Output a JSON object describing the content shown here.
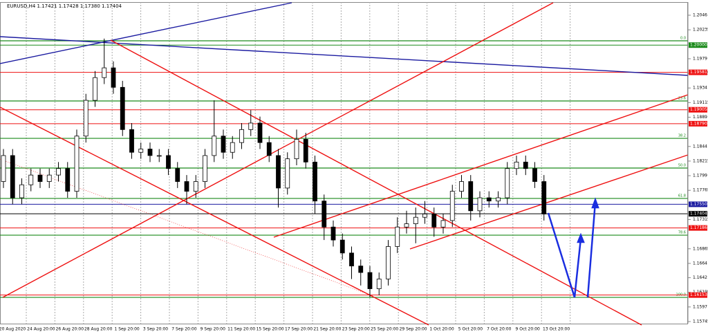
{
  "chart_data": {
    "type": "candlestick",
    "title": "EURUSD,H4  1.17421 1.17428 1.17380 1.17404",
    "ylim": [
      1.15745,
      1.2046
    ],
    "yticks": [
      1.2046,
      1.20235,
      1.1979,
      1.19565,
      1.1934,
      1.19115,
      1.1889,
      1.1844,
      1.18215,
      1.1799,
      1.17765,
      1.17315,
      1.16865,
      1.1664,
      1.1642,
      1.16195,
      1.1597,
      1.15745
    ],
    "xlabels": [
      "20 Aug 2020",
      "24 Aug 20:00",
      "26 Aug 20:00",
      "28 Aug 20:00",
      "1 Sep 20:00",
      "3 Sep 20:00",
      "7 Sep 20:00",
      "9 Sep 20:00",
      "11 Sep 20:00",
      "15 Sep 20:00",
      "17 Sep 20:00",
      "21 Sep 20:00",
      "23 Sep 20:00",
      "25 Sep 20:00",
      "29 Sep 20:00",
      "1 Oct 20:00",
      "5 Oct 20:00",
      "7 Oct 20:00",
      "9 Oct 20:00",
      "13 Oct 20:00"
    ],
    "open": [
      1.179,
      1.183,
      1.1765,
      1.1785,
      1.18,
      1.179,
      1.18,
      1.181,
      1.1775,
      1.186,
      1.1915,
      1.195,
      1.1965,
      1.1935,
      1.187,
      1.1835,
      1.184,
      1.183,
      1.183,
      1.181,
      1.179,
      1.1775,
      1.179,
      1.183,
      1.186,
      1.1835,
      1.185,
      1.187,
      1.188,
      1.185,
      1.183,
      1.178,
      1.1825,
      1.1855,
      1.182,
      1.176,
      1.172,
      1.17,
      1.168,
      1.166,
      1.165,
      1.1625,
      1.164,
      1.169,
      1.172,
      1.1725,
      1.1735,
      1.174,
      1.172,
      1.173,
      1.1775,
      1.179,
      1.1745,
      1.1765,
      1.176,
      1.1765,
      1.181,
      1.182,
      1.181,
      1.179
    ],
    "high": [
      1.184,
      1.184,
      1.1795,
      1.181,
      1.181,
      1.181,
      1.182,
      1.182,
      1.187,
      1.1925,
      1.196,
      1.201,
      1.1975,
      1.1945,
      1.188,
      1.185,
      1.185,
      1.184,
      1.184,
      1.182,
      1.18,
      1.18,
      1.184,
      1.1915,
      1.187,
      1.186,
      1.188,
      1.19,
      1.189,
      1.186,
      1.184,
      1.1835,
      1.187,
      1.1865,
      1.183,
      1.177,
      1.173,
      1.171,
      1.169,
      1.167,
      1.166,
      1.165,
      1.17,
      1.1735,
      1.1745,
      1.175,
      1.176,
      1.175,
      1.174,
      1.1785,
      1.18,
      1.18,
      1.1775,
      1.1775,
      1.1775,
      1.182,
      1.183,
      1.183,
      1.182,
      1.18
    ],
    "low": [
      1.178,
      1.1755,
      1.1755,
      1.1775,
      1.178,
      1.178,
      1.179,
      1.1765,
      1.1765,
      1.185,
      1.1905,
      1.194,
      1.1925,
      1.186,
      1.1825,
      1.1825,
      1.182,
      1.182,
      1.18,
      1.178,
      1.1755,
      1.1765,
      1.178,
      1.182,
      1.1825,
      1.1825,
      1.184,
      1.186,
      1.184,
      1.182,
      1.175,
      1.177,
      1.1815,
      1.181,
      1.174,
      1.17,
      1.169,
      1.167,
      1.164,
      1.163,
      1.1612,
      1.1615,
      1.163,
      1.168,
      1.171,
      1.1695,
      1.1725,
      1.1705,
      1.171,
      1.172,
      1.1765,
      1.173,
      1.1735,
      1.175,
      1.175,
      1.1755,
      1.18,
      1.18,
      1.178,
      1.173
    ],
    "close": [
      1.183,
      1.1765,
      1.1785,
      1.18,
      1.179,
      1.18,
      1.181,
      1.1775,
      1.186,
      1.1915,
      1.195,
      1.1965,
      1.1935,
      1.187,
      1.1835,
      1.184,
      1.183,
      1.183,
      1.181,
      1.179,
      1.1775,
      1.179,
      1.183,
      1.186,
      1.1835,
      1.185,
      1.187,
      1.188,
      1.185,
      1.183,
      1.178,
      1.1825,
      1.1855,
      1.182,
      1.176,
      1.172,
      1.17,
      1.168,
      1.166,
      1.165,
      1.1625,
      1.164,
      1.169,
      1.172,
      1.1725,
      1.1735,
      1.174,
      1.172,
      1.173,
      1.1775,
      1.179,
      1.1745,
      1.1765,
      1.176,
      1.1765,
      1.181,
      1.182,
      1.181,
      1.179,
      1.174
    ],
    "levels": [
      {
        "value": 1.2,
        "label": "1.20000",
        "color": "#1a8a1a"
      },
      {
        "value": 1.19581,
        "label": "1.19581",
        "color": "#ee1111"
      },
      {
        "value": 1.19005,
        "label": "1.19005",
        "color": "#ee1111"
      },
      {
        "value": 1.1879,
        "label": "1.18790",
        "color": "#ee1111"
      },
      {
        "value": 1.1755,
        "label": "1.17550",
        "color": "#1a1aa0"
      },
      {
        "value": 1.17404,
        "label": "1.17404",
        "color": "#000000"
      },
      {
        "value": 1.17186,
        "label": "1.17186",
        "color": "#ee1111"
      },
      {
        "value": 1.16153,
        "label": "1.16153",
        "color": "#ee1111"
      }
    ],
    "fib": [
      {
        "value": 1.20066,
        "label": "0.0"
      },
      {
        "value": 1.1914,
        "label": "23.6"
      },
      {
        "value": 1.18565,
        "label": "38.2"
      },
      {
        "value": 1.18108,
        "label": "50.0"
      },
      {
        "value": 1.1764,
        "label": "61.8"
      },
      {
        "value": 1.17075,
        "label": "78.6"
      },
      {
        "value": 1.16117,
        "label": "100.0"
      }
    ],
    "fib_color": "#1a8a1a",
    "up_color": "#ffffff",
    "down_color": "#000000",
    "grid": true
  }
}
